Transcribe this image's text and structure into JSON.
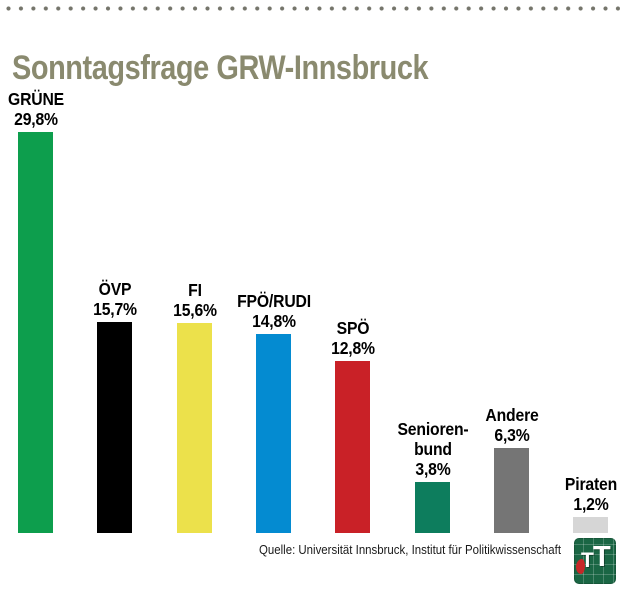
{
  "header": {
    "title": "Sonntagsfrage GRW-Innsbruck"
  },
  "style": {
    "title_color": "#8a8a6f",
    "dots_color": "#75756b",
    "label_color": "#000000",
    "background": "#ffffff"
  },
  "chart_data": {
    "type": "bar",
    "title": "Sonntagsfrage GRW-Innsbruck",
    "categories": [
      "GRÜNE",
      "ÖVP",
      "FI",
      "FPÖ/RUDI",
      "SPÖ",
      "Seniorenbund",
      "Andere",
      "Piraten"
    ],
    "values": [
      29.8,
      15.7,
      15.6,
      14.8,
      12.8,
      3.8,
      6.3,
      1.2
    ],
    "value_labels": [
      "29,8%",
      "15,7%",
      "15,6%",
      "14,8%",
      "12,8%",
      "3,8%",
      "6,3%",
      "1,2%"
    ],
    "bars": [
      {
        "key": "gruene",
        "label_lines": [
          "GRÜNE"
        ],
        "value": 29.8,
        "value_label": "29,8%",
        "color": "#0d9e4d"
      },
      {
        "key": "oevp",
        "label_lines": [
          "ÖVP"
        ],
        "value": 15.7,
        "value_label": "15,7%",
        "color": "#000000"
      },
      {
        "key": "fi",
        "label_lines": [
          "FI"
        ],
        "value": 15.6,
        "value_label": "15,6%",
        "color": "#ece14b"
      },
      {
        "key": "fpoe-rudi",
        "label_lines": [
          "FPÖ/RUDI"
        ],
        "value": 14.8,
        "value_label": "14,8%",
        "color": "#048bd1"
      },
      {
        "key": "spoe",
        "label_lines": [
          "SPÖ"
        ],
        "value": 12.8,
        "value_label": "12,8%",
        "color": "#c92127"
      },
      {
        "key": "seniorenbund",
        "label_lines": [
          "Senioren-",
          "bund"
        ],
        "value": 3.8,
        "value_label": "3,8%",
        "color": "#0d7d5d"
      },
      {
        "key": "andere",
        "label_lines": [
          "Andere"
        ],
        "value": 6.3,
        "value_label": "6,3%",
        "color": "#757575"
      },
      {
        "key": "piraten",
        "label_lines": [
          "Piraten"
        ],
        "value": 1.2,
        "value_label": "1,2%",
        "color": "#d6d6d6"
      }
    ],
    "xlabel": "",
    "ylabel": "",
    "ylim": [
      0,
      31
    ],
    "grid": false,
    "legend_position": "none",
    "value_label_position": "above-bar"
  },
  "footer": {
    "source": "Quelle: Universität Innsbruck, Institut für Politikwissenschaft"
  },
  "branding": {
    "logo_letter_1": "T",
    "logo_letter_2": "T",
    "logo_bg_color": "#1a6644",
    "logo_eagle_color": "#c62828"
  }
}
